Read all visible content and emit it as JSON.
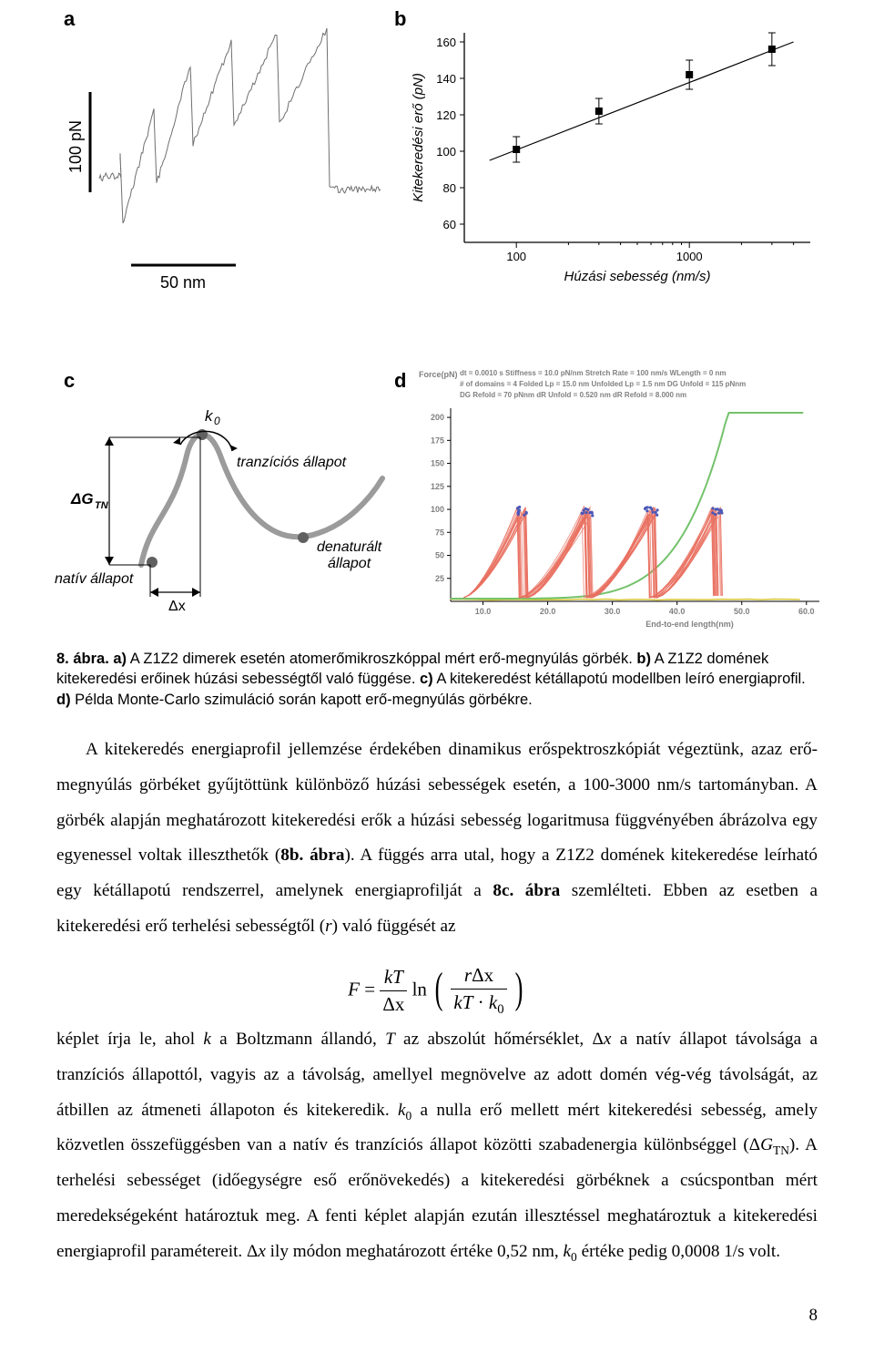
{
  "panel_labels": {
    "a": "a",
    "b": "b",
    "c": "c",
    "d": "d"
  },
  "panelA": {
    "ylabel": "100 pN",
    "xlabel": "50 nm",
    "trace_color": "#6f6f6f",
    "bg": "#ffffff"
  },
  "panelB": {
    "ylabel": "Kitekeredési erő (pN)",
    "xlabel": "Húzási sebesség (nm/s)",
    "title_fontsize": 16,
    "label_fontsize": 14,
    "xscale": "log",
    "x_ticks": [
      100,
      1000
    ],
    "x_tick_labels": [
      "100",
      "1000"
    ],
    "y_ticks": [
      60,
      80,
      100,
      120,
      140,
      160
    ],
    "data_x": [
      100,
      300,
      1000,
      3000
    ],
    "data_y": [
      101,
      122,
      142,
      156
    ],
    "err_y": [
      7,
      7,
      8,
      9
    ],
    "marker": "square",
    "marker_size": 7,
    "marker_fill": "#000000",
    "line_color": "#000000",
    "axis_color": "#000000",
    "bg": "#ffffff"
  },
  "panelC": {
    "labels": {
      "k0": "k₀",
      "trans": "tranzíciós állapot",
      "dGTN": "ΔG",
      "dGTN_sub": "TN",
      "denat": "denaturált állapot",
      "native": "natív állapot",
      "dx": "Δx"
    },
    "curve_color": "#9b9b9b",
    "arrow_color": "#000000",
    "dot_color": "#606060",
    "bg": "#ffffff"
  },
  "panelD": {
    "ylabel_text": "Force(pN)",
    "xlabel_text": "End-to-end length(nm)",
    "params_lines": [
      "dt = 0.0010 s        Stiffness = 10.0 pN/nm Stretch Rate = 100 nm/s WLength =   0 nm",
      "# of domains = 4    Folded Lp = 15.0 nm   Unfolded Lp = 1.5 nm   DG Unfold = 115 pNnm",
      "DG Refold =  70 pNnm   dR Unfold = 0.520 nm   dR Refold = 8.000 nm"
    ],
    "y_ticks": [
      25,
      50,
      75,
      100,
      125,
      150,
      175,
      200
    ],
    "x_ticks": [
      10,
      20,
      30,
      40,
      50,
      60
    ],
    "x_tick_labels": [
      "10.0",
      "20.0",
      "30.0",
      "40.0",
      "50.0",
      "60.0"
    ],
    "axis_color": "#000000",
    "curve_color": "#e97060",
    "dot_color": "#4a58b8",
    "green_color": "#74c26b",
    "yellow_color": "#d8c73a",
    "bg": "#ffffff"
  },
  "caption": {
    "fig_label": "8. ábra. a)",
    "a_text": " A Z1Z2 dimerek esetén atomerőmikroszkóppal mért erő-megnyúlás görbék. ",
    "b_label": "b)",
    "b_text": " A Z1Z2 domének kitekeredési erőinek húzási sebességtől való függése. ",
    "c_label": "c)",
    "c_text": " A kitekeredést kétállapotú modellben leíró energiaprofil. ",
    "d_label": "d)",
    "d_text": " Példa Monte-Carlo szimuláció során kapott erő-megnyúlás görbékre."
  },
  "bodytext": {
    "p1": "A kitekeredés energiaprofil jellemzése érdekében dinamikus erőspektroszkópiát végeztünk, azaz erő-megnyúlás görbéket gyűjtöttünk különböző húzási sebességek esetén, a 100-3000 nm/s tartományban. A görbék alapján meghatározott kitekeredési erők a húzási sebesség logaritmusa függvényében ábrázolva egy egyenessel voltak illeszthetők (",
    "p1_ref": "8b. ábra",
    "p1b": "). A függés arra utal, hogy a Z1Z2 domének kitekeredése leírható egy kétállapotú rendszerrel, amelynek energiaprofilját a ",
    "p1_ref2": "8c. ábra",
    "p1c": " szemlélteti. Ebben az esetben a kitekeredési erő terhelési sebességtől (",
    "p1_r": "r",
    "p1d": ") való függését az",
    "p2a": "képlet írja le, ahol ",
    "p2_k": "k",
    "p2b": " a Boltzmann állandó, ",
    "p2_T": "T",
    "p2c": " az abszolút hőmérséklet, Δ",
    "p2_x1": "x",
    "p2d": " a natív állapot távolsága a tranzíciós állapottól, vagyis az a távolság, amellyel megnövelve az adott domén vég-vég távolságát, az átbillen az átmeneti állapoton és kitekeredik. ",
    "p2_k0": "k",
    "p2e": " a nulla erő mellett mért kitekeredési sebesség, amely közvetlen összefüggésben van a natív és tranzíciós állapot közötti szabadenergia különbséggel (Δ",
    "p2_G": "G",
    "p2_GTN": "TN",
    "p2f": "). A terhelési sebességet (időegységre eső erőnövekedés) a kitekeredési görbéknek a csúcspontban mért meredekségeként határoztuk meg. A fenti képlet alapján ezután illesztéssel meghatároztuk a kitekeredési energiaprofil paramétereit. Δ",
    "p2_x2": "x",
    "p2g": " ily módon meghatározott értéke 0,52 nm, ",
    "p2_k02": "k",
    "p2h": " értéke pedig 0,0008 1/s volt."
  },
  "formula": {
    "F": "F",
    "eq": " = ",
    "kT": "kT",
    "dx": "Δx",
    "ln": " ln",
    "r": "r",
    "dx2": "Δx",
    "kT2": "kT",
    "dot": " · ",
    "k0": "k",
    "zero": "0"
  },
  "page_number": "8"
}
